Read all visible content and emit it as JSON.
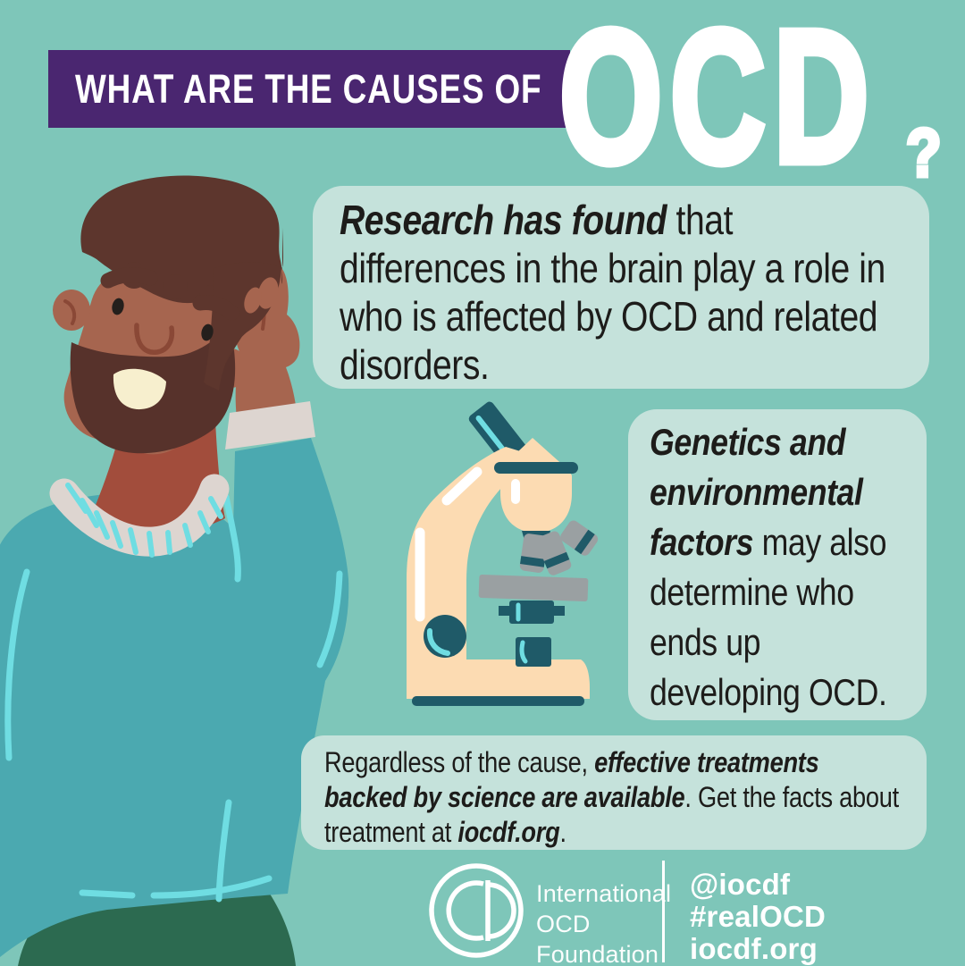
{
  "header": {
    "banner_text": "WHAT ARE THE CAUSES OF",
    "acronym": "OCD",
    "question_mark": "?"
  },
  "cards": {
    "research": {
      "segments": [
        {
          "t": "Research has found",
          "em": true
        },
        {
          "t": " that differences in the brain play a role in who is affected by OCD and related disorders.",
          "em": false
        }
      ]
    },
    "genetics": {
      "segments": [
        {
          "t": "Genetics and environmental factors",
          "em": true
        },
        {
          "t": " may also determine who ends up developing OCD.",
          "em": false
        }
      ]
    },
    "treatment": {
      "segments": [
        {
          "t": "Regardless of the cause, ",
          "em": false
        },
        {
          "t": "effective treatments backed by science are available",
          "em": true
        },
        {
          "t": ". Get the facts about treatment at ",
          "em": false
        },
        {
          "t": "iocdf.org",
          "em": true
        },
        {
          "t": ".",
          "em": false
        }
      ]
    }
  },
  "footer": {
    "org_name_lines": [
      "International",
      "OCD",
      "Foundation"
    ],
    "social_handle": "@iocdf",
    "hashtag": "#realOCD",
    "website": "iocdf.org",
    "logo_name": "IOCDF circle logo"
  },
  "illustrations": {
    "man": "man scratching head",
    "microscope": "microscope"
  },
  "colors": {
    "background": "#7EC6B9",
    "banner_purple": "#4A2670",
    "card_mint": "#C5E2DB",
    "text_dark": "#1D1C1A",
    "white": "#FFFFFF",
    "sweater_teal": "#4BA9B0",
    "sweater_accent_cyan": "#6FDDE2",
    "skin_brown": "#A6654F",
    "neck_shadow": "#A24D3C",
    "hair_brown": "#5D362D",
    "beard_brown": "#57322B",
    "mouth_cream": "#F7EFCE",
    "collar_offwhite": "#DDD5D0",
    "pants_green": "#2C6A50",
    "microscope_cream": "#FCDBB2",
    "microscope_teal": "#1F5A68",
    "microscope_gray": "#9AA0A2"
  }
}
